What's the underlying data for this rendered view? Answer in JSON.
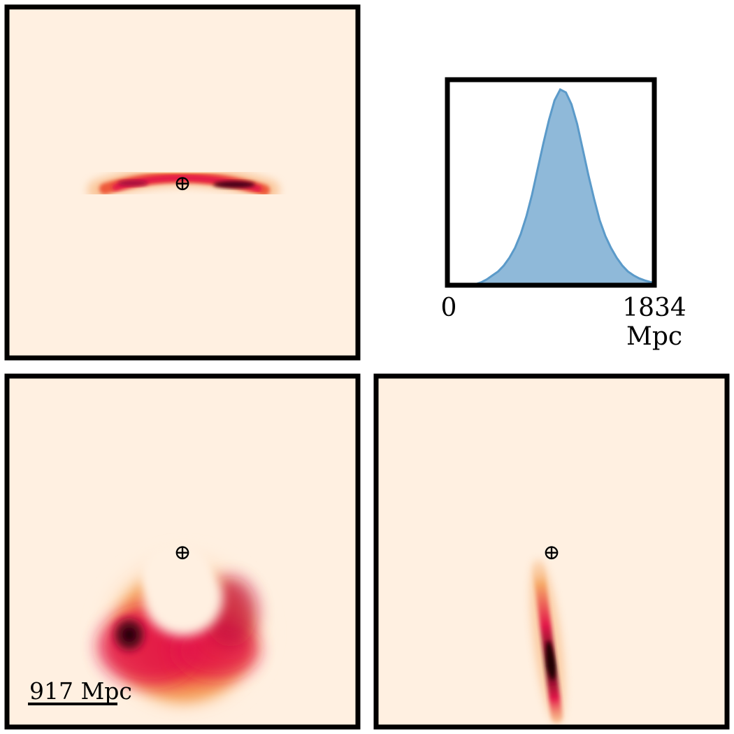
{
  "colors": {
    "frame": "#000000",
    "background_map": "#fff0e1",
    "colormap": [
      "#fff0e1",
      "#fde3c8",
      "#f6a866",
      "#ee5a3a",
      "#e3194a",
      "#a6093d",
      "#4a0612",
      "#1a0006"
    ],
    "distance_fill": "#8fb9d9",
    "distance_stroke": "#5b9ac9"
  },
  "panels": {
    "top_left": {
      "view": "projection-1",
      "earth_symbol": "⊕"
    },
    "bottom_left": {
      "view": "projection-2",
      "earth_symbol": "⊕",
      "scale_label": "917 Mpc"
    },
    "bottom_right": {
      "view": "projection-3",
      "earth_symbol": "⊕"
    }
  },
  "chart_data": {
    "type": "area",
    "description_visible": "distance posterior",
    "xlim": [
      0,
      1834
    ],
    "xticks": [
      "0",
      "1834"
    ],
    "xlabel_unit": "Mpc",
    "x": [
      0,
      50,
      100,
      150,
      200,
      250,
      300,
      350,
      400,
      450,
      500,
      550,
      600,
      650,
      700,
      750,
      800,
      850,
      900,
      950,
      1000,
      1050,
      1100,
      1150,
      1200,
      1250,
      1300,
      1350,
      1400,
      1450,
      1500,
      1550,
      1600,
      1650,
      1700,
      1750,
      1800,
      1834
    ],
    "y": [
      0,
      0,
      0,
      0,
      0.001,
      0.005,
      0.015,
      0.03,
      0.05,
      0.07,
      0.1,
      0.14,
      0.19,
      0.26,
      0.35,
      0.46,
      0.59,
      0.72,
      0.84,
      0.94,
      0.995,
      0.98,
      0.92,
      0.82,
      0.69,
      0.56,
      0.44,
      0.33,
      0.25,
      0.19,
      0.14,
      0.1,
      0.07,
      0.05,
      0.035,
      0.024,
      0.016,
      0.012
    ]
  }
}
